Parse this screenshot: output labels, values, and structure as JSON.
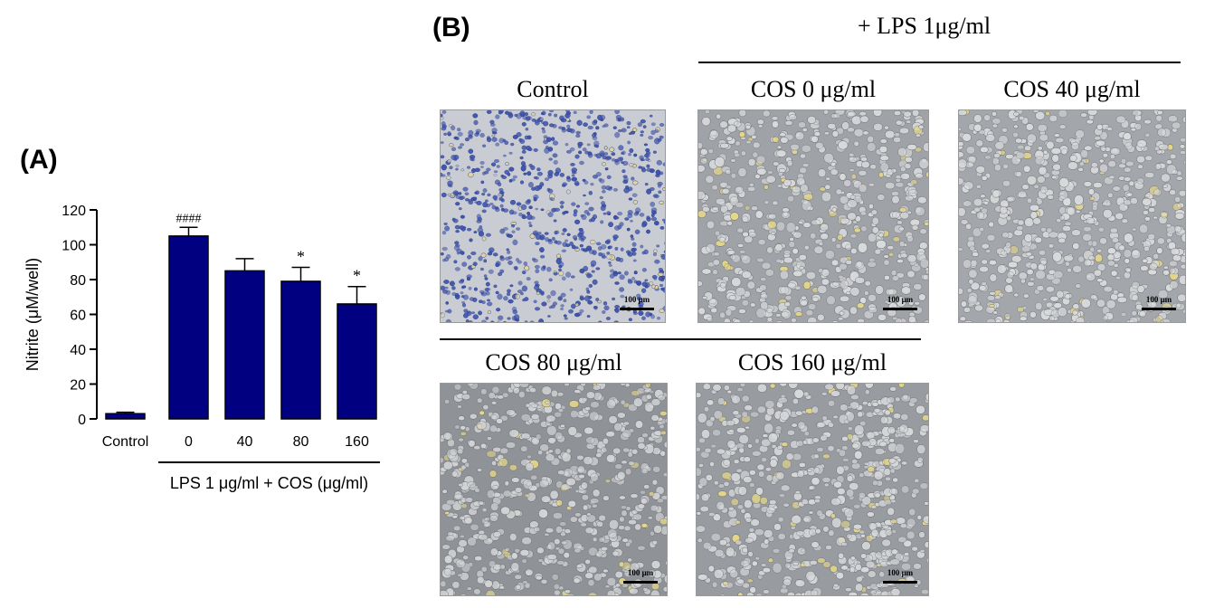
{
  "panel_a": {
    "label": "(A)",
    "chart_data": {
      "type": "bar",
      "categories": [
        "Control",
        "0",
        "40",
        "80",
        "160"
      ],
      "values": [
        3,
        105,
        85,
        79,
        66
      ],
      "errors": [
        0.8,
        5,
        7,
        8,
        10
      ],
      "annotations": [
        "",
        "####",
        "",
        "*",
        "*"
      ],
      "ylabel": "Nitrite (μM/well)",
      "yticks": [
        0,
        20,
        40,
        60,
        80,
        100,
        120
      ],
      "ylim": [
        0,
        120
      ],
      "group_label": "LPS 1 μg/ml + COS (μg/ml)",
      "bar_color": "#000080",
      "grid": false
    }
  },
  "panel_b": {
    "label": "(B)",
    "lps_label": "+ LPS 1μg/ml",
    "images": [
      {
        "title": "Control",
        "scale_label": "100 μm",
        "bg": "#c9ccd3",
        "cell": "#3f56b0",
        "highlight": "#e0d6a0"
      },
      {
        "title": "COS 0 μg/ml",
        "scale_label": "100 μm",
        "bg": "#9fa2a6",
        "cell": "#d8dadc",
        "highlight": "#e6d88a"
      },
      {
        "title": "COS 40 μg/ml",
        "scale_label": "100 μm",
        "bg": "#a3a6aa",
        "cell": "#d9dbdd",
        "highlight": "#e6d88a"
      },
      {
        "title": "COS 80 μg/ml",
        "scale_label": "100 μm",
        "bg": "#8f9297",
        "cell": "#d2d4d6",
        "highlight": "#e6d88a"
      },
      {
        "title": "COS 160 μg/ml",
        "scale_label": "100 μm",
        "bg": "#989ba0",
        "cell": "#d6d8da",
        "highlight": "#e6d88a"
      }
    ]
  }
}
